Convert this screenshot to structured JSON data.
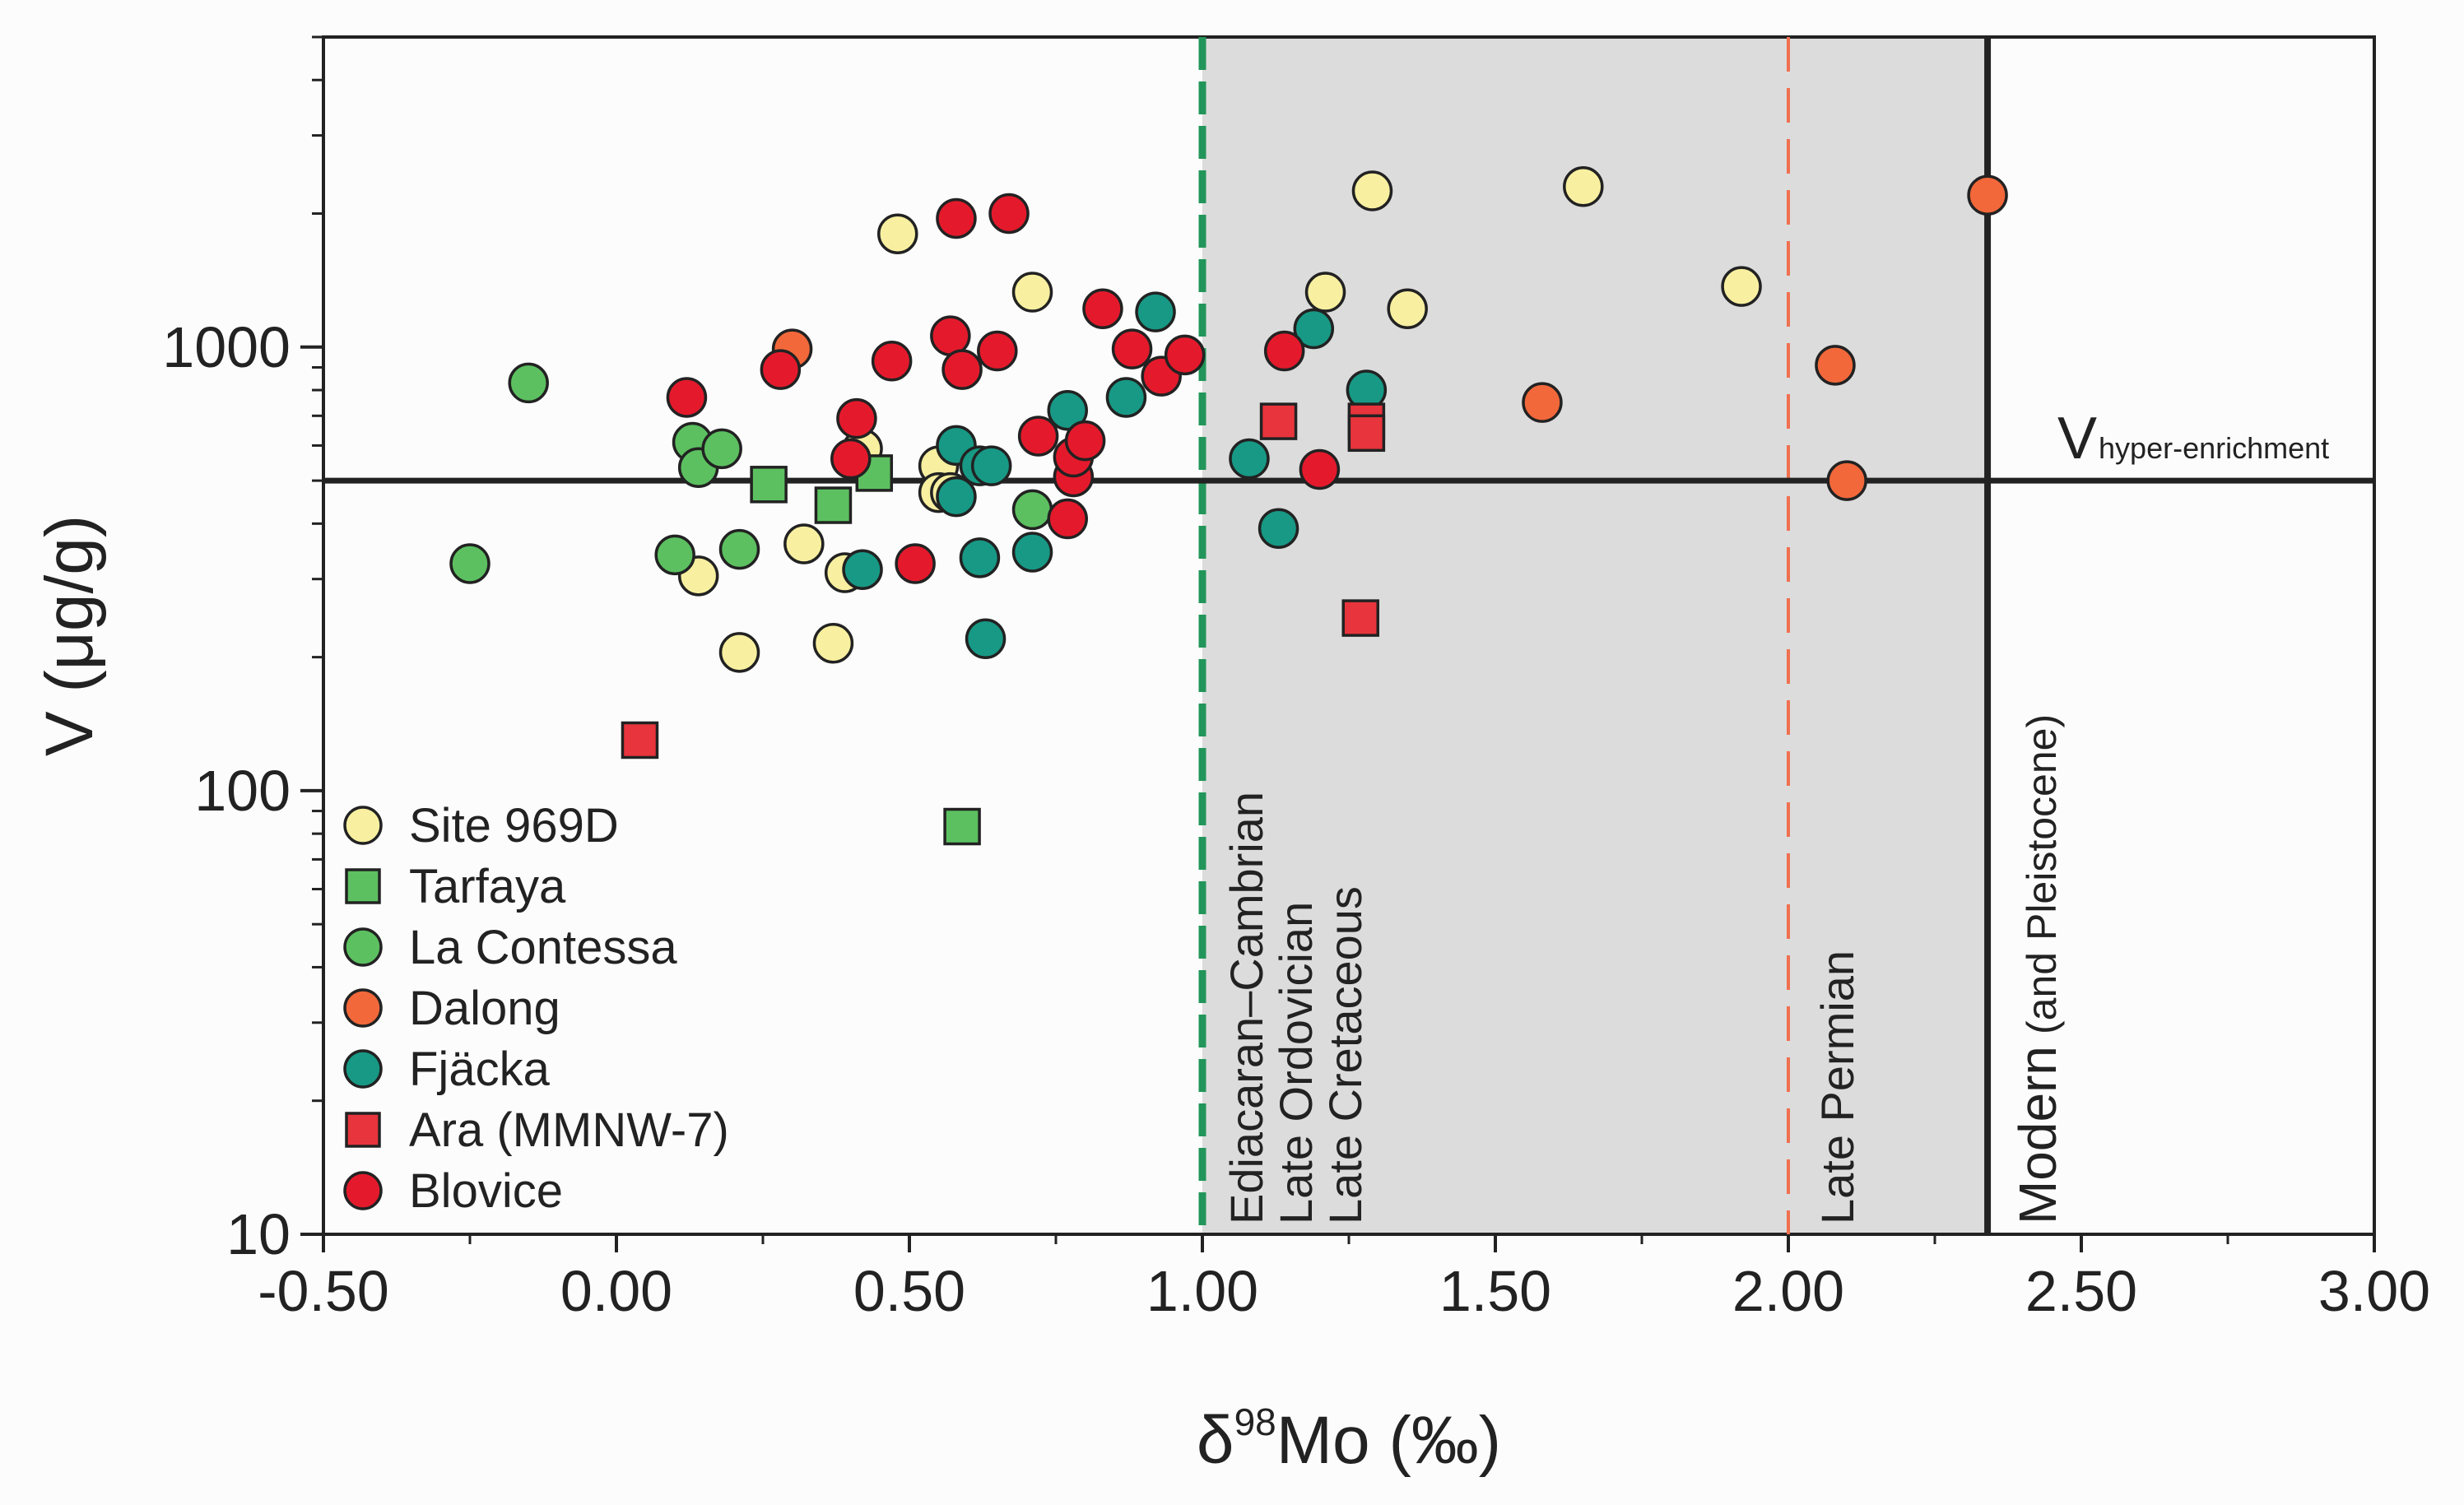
{
  "chart_data": {
    "type": "scatter",
    "xlabel": "δ98Mo (‰)",
    "xlabel_parts": {
      "prefix": "δ",
      "sup": "98",
      "suffix": "Mo (‰)"
    },
    "ylabel": "V (μg/g)",
    "xlim": [
      -0.5,
      3.0
    ],
    "ylim": [
      10,
      5000
    ],
    "yscale": "log",
    "x_ticks": [
      -0.5,
      0.0,
      0.5,
      1.0,
      1.5,
      2.0,
      2.5,
      3.0
    ],
    "x_tick_labels": [
      "-0.50",
      "0.00",
      "0.50",
      "1.00",
      "1.50",
      "2.00",
      "2.50",
      "3.00"
    ],
    "y_ticks": [
      10,
      100,
      1000
    ],
    "y_tick_labels": [
      "10",
      "100",
      "1000"
    ],
    "shaded_region": {
      "x_from": 1.0,
      "x_to": 2.34,
      "color": "#dcdcdc"
    },
    "reference_lines": [
      {
        "x": 1.0,
        "color": "#22965a",
        "style": "dashed-thick",
        "label": "Ediacaran–Cambrian"
      },
      {
        "x": 2.0,
        "color": "#f07050",
        "style": "dashed-thin",
        "label": "Late Permian"
      },
      {
        "x": 2.34,
        "color": "#222222",
        "style": "solid"
      }
    ],
    "hline": {
      "y": 500,
      "label_main": "V",
      "label_sub": "hyper-enrichment"
    },
    "region_labels": {
      "ediacaran": "Ediacaran–Cambrian",
      "ordovician": "Late Ordovician",
      "cretaceous": "Late Cretaceous",
      "permian": "Late Permian",
      "modern": "Modern",
      "modern_paren": "(and Pleistocene)"
    },
    "series": [
      {
        "name": "Site 969D",
        "marker": "circle",
        "color": "#f8f0a0",
        "points": [
          [
            0.48,
            1800
          ],
          [
            0.71,
            1330
          ],
          [
            0.42,
            590
          ],
          [
            0.32,
            360
          ],
          [
            0.55,
            540
          ],
          [
            0.55,
            470
          ],
          [
            0.57,
            470
          ],
          [
            0.39,
            310
          ],
          [
            0.14,
            305
          ],
          [
            0.21,
            205
          ],
          [
            0.37,
            215
          ],
          [
            1.29,
            2250
          ],
          [
            1.65,
            2300
          ],
          [
            1.21,
            1330
          ],
          [
            1.35,
            1220
          ],
          [
            1.92,
            1370
          ]
        ]
      },
      {
        "name": "Tarfaya",
        "marker": "square",
        "color": "#5cc060",
        "points": [
          [
            0.26,
            490
          ],
          [
            0.37,
            440
          ],
          [
            0.44,
            520
          ],
          [
            0.59,
            83
          ]
        ]
      },
      {
        "name": "La Contessa",
        "marker": "circle",
        "color": "#5cc060",
        "points": [
          [
            -0.15,
            830
          ],
          [
            -0.25,
            325
          ],
          [
            0.13,
            610
          ],
          [
            0.14,
            535
          ],
          [
            0.18,
            590
          ],
          [
            0.1,
            340
          ],
          [
            0.21,
            350
          ],
          [
            0.71,
            430
          ]
        ]
      },
      {
        "name": "Dalong",
        "marker": "circle",
        "color": "#f2683a",
        "points": [
          [
            0.3,
            990
          ],
          [
            1.58,
            750
          ],
          [
            2.08,
            910
          ],
          [
            2.1,
            500
          ],
          [
            2.34,
            2200
          ]
        ]
      },
      {
        "name": "Fjäcka",
        "marker": "circle",
        "color": "#179985",
        "points": [
          [
            0.58,
            600
          ],
          [
            0.58,
            460
          ],
          [
            0.62,
            540
          ],
          [
            0.64,
            540
          ],
          [
            0.62,
            335
          ],
          [
            0.63,
            220
          ],
          [
            0.42,
            315
          ],
          [
            0.71,
            345
          ],
          [
            0.77,
            720
          ],
          [
            0.87,
            770
          ],
          [
            0.92,
            1200
          ],
          [
            1.08,
            560
          ],
          [
            1.13,
            390
          ],
          [
            1.19,
            1100
          ],
          [
            1.28,
            800
          ]
        ]
      },
      {
        "name": "Ara (MMNW-7)",
        "marker": "square",
        "color": "#e8343c",
        "points": [
          [
            0.04,
            130
          ],
          [
            1.13,
            680
          ],
          [
            1.28,
            680
          ],
          [
            1.28,
            640
          ],
          [
            1.27,
            245
          ]
        ]
      },
      {
        "name": "Blovice",
        "marker": "circle",
        "color": "#e41a2c",
        "points": [
          [
            0.12,
            770
          ],
          [
            0.28,
            890
          ],
          [
            0.41,
            690
          ],
          [
            0.4,
            560
          ],
          [
            0.47,
            930
          ],
          [
            0.51,
            325
          ],
          [
            0.57,
            1060
          ],
          [
            0.58,
            1950
          ],
          [
            0.59,
            890
          ],
          [
            0.65,
            980
          ],
          [
            0.67,
            2000
          ],
          [
            0.72,
            630
          ],
          [
            0.78,
            510
          ],
          [
            0.78,
            565
          ],
          [
            0.8,
            615
          ],
          [
            0.77,
            410
          ],
          [
            0.83,
            1220
          ],
          [
            0.88,
            990
          ],
          [
            0.93,
            860
          ],
          [
            0.97,
            960
          ],
          [
            1.14,
            980
          ],
          [
            1.2,
            530
          ]
        ]
      }
    ],
    "legend_position": "bottom-left"
  }
}
